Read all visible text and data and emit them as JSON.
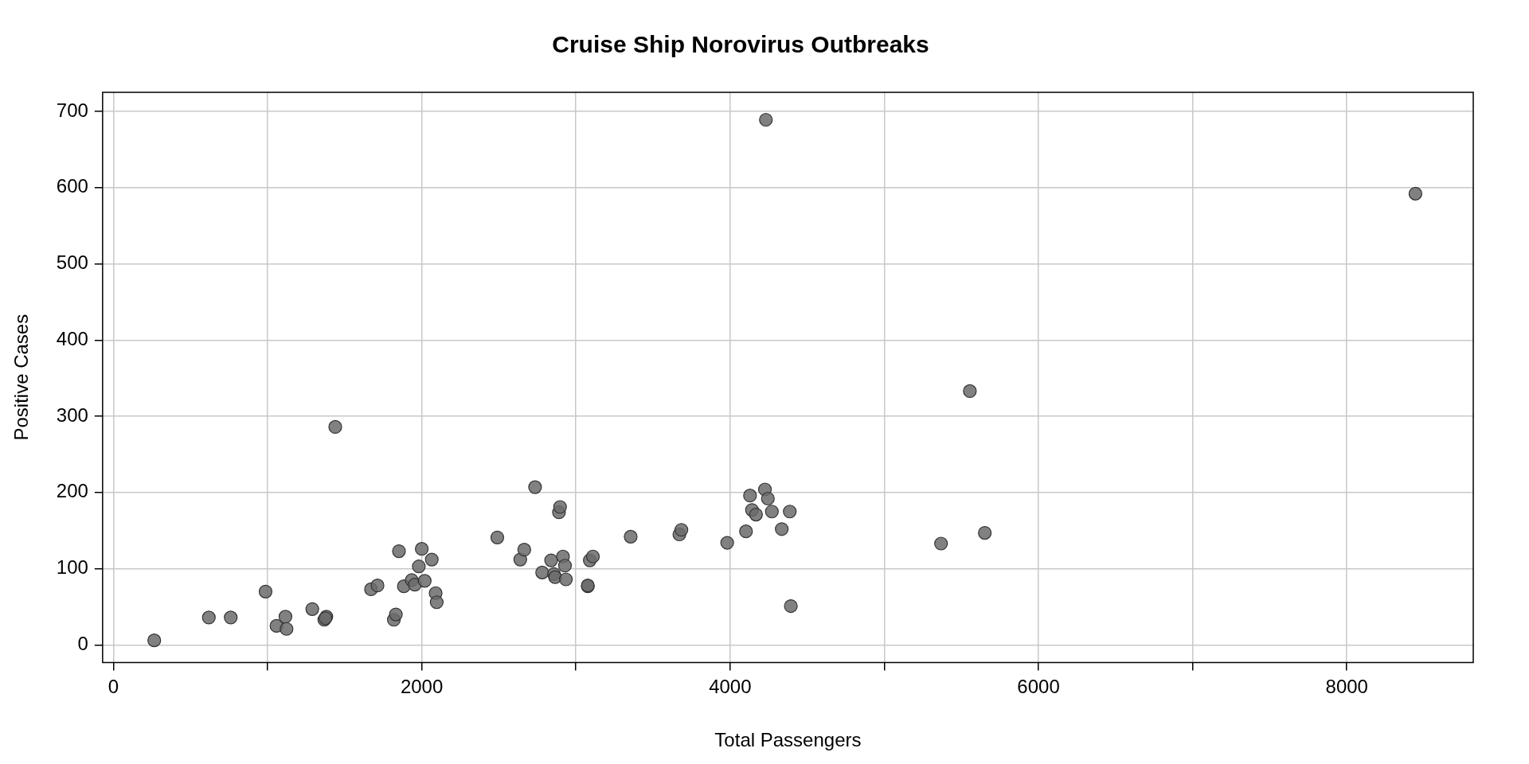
{
  "chart_data": {
    "type": "scatter",
    "title": "Cruise Ship Norovirus Outbreaks",
    "xlabel": "Total Passengers",
    "ylabel": "Positive Cases",
    "x": [
      265,
      619,
      761,
      987,
      1058,
      1116,
      1123,
      1290,
      1368,
      1381,
      1375,
      1439,
      1671,
      1713,
      1819,
      1832,
      1852,
      1884,
      1935,
      1955,
      1981,
      2000,
      2019,
      2065,
      2090,
      2097,
      2490,
      2639,
      2665,
      2735,
      2781,
      2839,
      2858,
      2865,
      2890,
      2897,
      2916,
      2929,
      2935,
      3077,
      3077,
      3090,
      3110,
      3355,
      3671,
      3684,
      3981,
      4103,
      4129,
      4142,
      4168,
      4226,
      4232,
      4245,
      4271,
      4335,
      4387,
      4394,
      5368,
      5555,
      5652,
      8445
    ],
    "series": [
      {
        "color": "#6b6b6b",
        "values": [
          6,
          36,
          36,
          70,
          25,
          37,
          21,
          47,
          33,
          37,
          35,
          286,
          73,
          78,
          33,
          40,
          123,
          77,
          85,
          79,
          103,
          126,
          84,
          112,
          68,
          56,
          141,
          112,
          125,
          207,
          95,
          111,
          93,
          89,
          174,
          181,
          116,
          104,
          86,
          77,
          78,
          111,
          116,
          142,
          145,
          151,
          134,
          149,
          196,
          177,
          171,
          204,
          689,
          192,
          175,
          152,
          175,
          51,
          133,
          333,
          147,
          592
        ]
      }
    ],
    "xlim": [
      -70,
      8820
    ],
    "ylim": [
      -23,
      725
    ],
    "xticks": [
      0,
      {
        "value": 1000,
        "label": null
      },
      2000,
      {
        "value": 3000,
        "label": null
      },
      4000,
      {
        "value": 5000,
        "label": null
      },
      6000,
      {
        "value": 7000,
        "label": null
      },
      8000
    ],
    "yticks": [
      0,
      100,
      200,
      300,
      400,
      500,
      600,
      700
    ],
    "grid": true,
    "marker": "circle",
    "legend": false
  }
}
